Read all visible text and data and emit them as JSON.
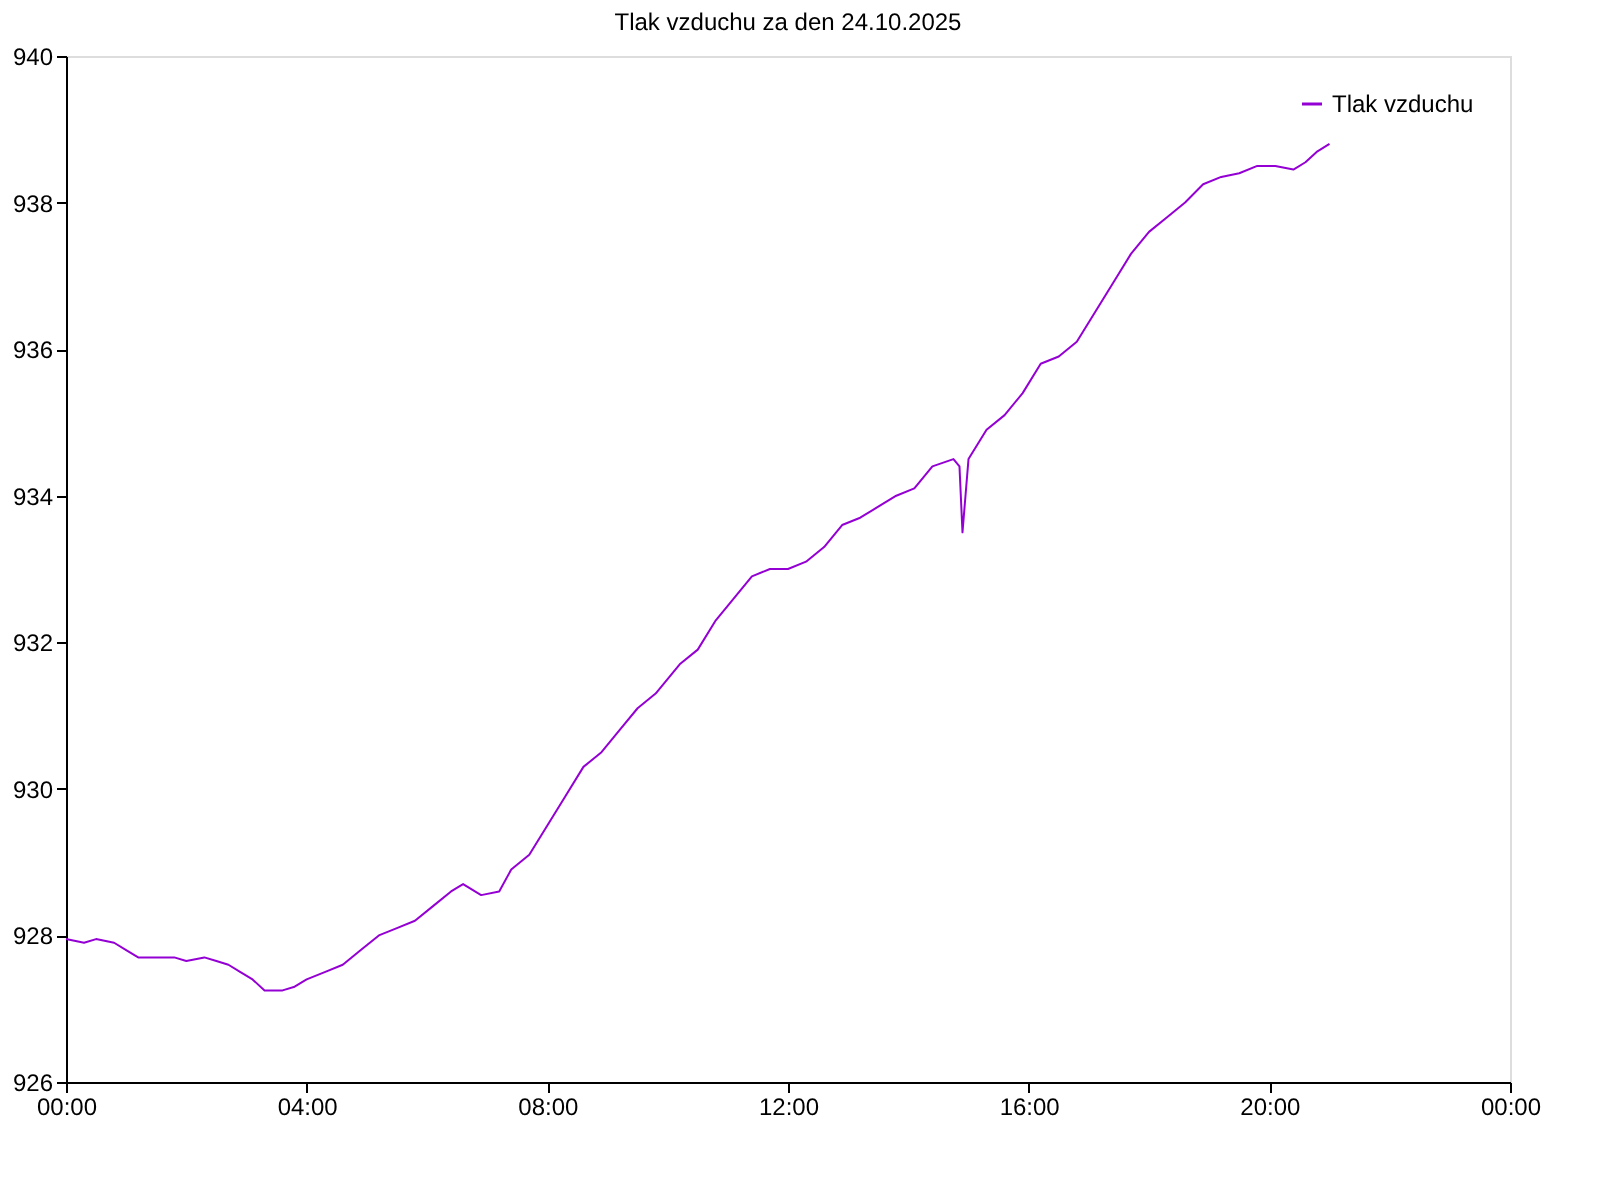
{
  "chart_data": {
    "type": "line",
    "title": "Tlak vzduchu za den 24.10.2025",
    "x": [
      0,
      0.3,
      0.5,
      0.8,
      1.0,
      1.2,
      1.5,
      1.8,
      2.0,
      2.3,
      2.5,
      2.7,
      2.9,
      3.1,
      3.3,
      3.6,
      3.8,
      4.0,
      4.3,
      4.6,
      4.9,
      5.2,
      5.5,
      5.8,
      6.1,
      6.4,
      6.6,
      6.9,
      7.2,
      7.4,
      7.7,
      8.0,
      8.3,
      8.6,
      8.9,
      9.2,
      9.5,
      9.8,
      10.2,
      10.5,
      10.8,
      11.1,
      11.4,
      11.7,
      12.0,
      12.3,
      12.6,
      12.9,
      13.2,
      13.5,
      13.8,
      14.1,
      14.4,
      14.75,
      14.85,
      14.9,
      14.95,
      15.0,
      15.3,
      15.6,
      15.9,
      16.2,
      16.5,
      16.8,
      17.1,
      17.4,
      17.7,
      18.0,
      18.3,
      18.6,
      18.9,
      19.2,
      19.5,
      19.8,
      20.1,
      20.4,
      20.6,
      20.8,
      21.0
    ],
    "series": [
      {
        "name": "Tlak vzduchu",
        "color": "#9400d3",
        "values": [
          927.95,
          927.9,
          927.95,
          927.9,
          927.8,
          927.7,
          927.7,
          927.7,
          927.65,
          927.7,
          927.65,
          927.6,
          927.5,
          927.4,
          927.25,
          927.25,
          927.3,
          927.4,
          927.5,
          927.6,
          927.8,
          928.0,
          928.1,
          928.2,
          928.4,
          928.6,
          928.7,
          928.55,
          928.6,
          928.9,
          929.1,
          929.5,
          929.9,
          930.3,
          930.5,
          930.8,
          931.1,
          931.3,
          931.7,
          931.9,
          932.3,
          932.6,
          932.9,
          933.0,
          933.0,
          933.1,
          933.3,
          933.6,
          933.7,
          933.85,
          934.0,
          934.1,
          934.4,
          934.5,
          934.4,
          933.5,
          934.0,
          934.5,
          934.9,
          935.1,
          935.4,
          935.8,
          935.9,
          936.1,
          936.5,
          936.9,
          937.3,
          937.6,
          937.8,
          938.0,
          938.25,
          938.35,
          938.4,
          938.5,
          938.5,
          938.45,
          938.55,
          938.7,
          938.8
        ]
      }
    ],
    "xlim": [
      0,
      24
    ],
    "xticks": [
      {
        "value": 0,
        "label": "00:00"
      },
      {
        "value": 4,
        "label": "04:00"
      },
      {
        "value": 8,
        "label": "08:00"
      },
      {
        "value": 12,
        "label": "12:00"
      },
      {
        "value": 16,
        "label": "16:00"
      },
      {
        "value": 20,
        "label": "20:00"
      },
      {
        "value": 24,
        "label": "00:00"
      }
    ],
    "ylim": [
      926,
      940
    ],
    "yticks": [
      926,
      928,
      930,
      932,
      934,
      936,
      938,
      940
    ],
    "grid": false,
    "legend": "top right"
  }
}
